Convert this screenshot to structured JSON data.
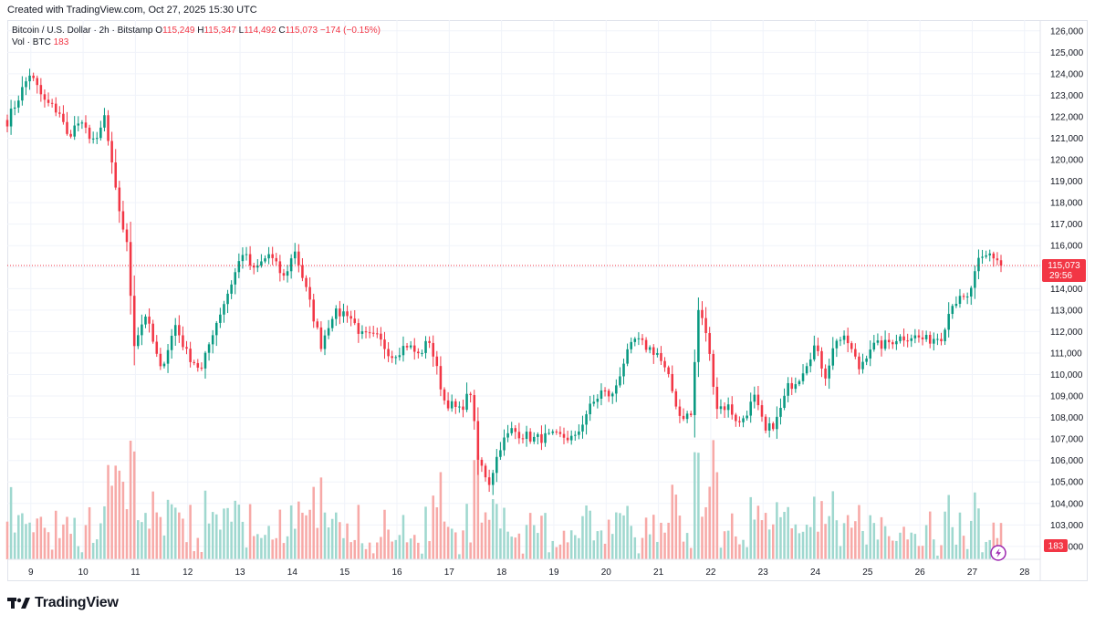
{
  "header": {
    "created_text": "Created with TradingView.com, Oct 27, 2025 15:30 UTC"
  },
  "legend": {
    "symbol": "Bitcoin / U.S. Dollar · 2h · Bitstamp",
    "open_label": "O",
    "open": "115,249",
    "high_label": "H",
    "high": "115,347",
    "low_label": "L",
    "low": "114,492",
    "close_label": "C",
    "close": "115,073",
    "change": "−174 (−0.15%)",
    "volume_label": "Vol · BTC",
    "volume": "183"
  },
  "price_badge": {
    "price": "115,073",
    "countdown": "29:56"
  },
  "volume_badge": "183",
  "footer": {
    "brand": "TradingView"
  },
  "colors": {
    "up": "#089981",
    "down": "#f23645",
    "up_vol": "#9fd8cf",
    "down_vol": "#f7a9a7",
    "grid": "#f0f3fa",
    "text": "#131722"
  },
  "chart_data": {
    "type": "candlestick",
    "symbol": "Bitcoin / U.S. Dollar",
    "interval": "2h",
    "exchange": "Bitstamp",
    "y_axis": {
      "min": 101400,
      "max": 126500,
      "ticks": [
        102000,
        103000,
        104000,
        105000,
        106000,
        107000,
        108000,
        109000,
        110000,
        111000,
        112000,
        113000,
        114000,
        115000,
        116000,
        117000,
        118000,
        119000,
        120000,
        121000,
        122000,
        123000,
        124000,
        125000,
        126000
      ]
    },
    "x_axis": {
      "start_day": 8.55,
      "end_day": 28.3,
      "ticks": [
        9,
        10,
        11,
        12,
        13,
        14,
        15,
        16,
        17,
        18,
        19,
        20,
        21,
        22,
        23,
        24,
        25,
        26,
        27,
        28
      ]
    },
    "last_price": 115073,
    "anchors": [
      [
        0,
        121800
      ],
      [
        6,
        124000
      ],
      [
        10,
        122700
      ],
      [
        14,
        122200
      ],
      [
        16,
        121100
      ],
      [
        19,
        121700
      ],
      [
        24,
        120800
      ],
      [
        26,
        122000
      ],
      [
        29,
        118500
      ],
      [
        32,
        116000
      ],
      [
        34,
        111500
      ],
      [
        37,
        112800
      ],
      [
        41,
        110200
      ],
      [
        45,
        112300
      ],
      [
        48,
        111000
      ],
      [
        52,
        110200
      ],
      [
        55,
        112000
      ],
      [
        59,
        113800
      ],
      [
        63,
        115700
      ],
      [
        66,
        114800
      ],
      [
        70,
        115600
      ],
      [
        74,
        114500
      ],
      [
        77,
        115800
      ],
      [
        81,
        113300
      ],
      [
        84,
        111400
      ],
      [
        87,
        112800
      ],
      [
        91,
        112900
      ],
      [
        95,
        111800
      ],
      [
        99,
        111700
      ],
      [
        103,
        110900
      ],
      [
        107,
        111400
      ],
      [
        110,
        110900
      ],
      [
        113,
        111600
      ],
      [
        117,
        108800
      ],
      [
        121,
        108300
      ],
      [
        124,
        109200
      ],
      [
        126,
        106000
      ],
      [
        129,
        105000
      ],
      [
        132,
        106700
      ],
      [
        135,
        107400
      ],
      [
        141,
        107000
      ],
      [
        145,
        107100
      ],
      [
        149,
        107100
      ],
      [
        152,
        107000
      ],
      [
        155,
        108200
      ],
      [
        159,
        109200
      ],
      [
        162,
        109000
      ],
      [
        165,
        110600
      ],
      [
        168,
        111600
      ],
      [
        171,
        111300
      ],
      [
        174,
        111000
      ],
      [
        177,
        109800
      ],
      [
        180,
        108100
      ],
      [
        183,
        108100
      ],
      [
        185,
        113000
      ],
      [
        187,
        112000
      ],
      [
        190,
        108500
      ],
      [
        193,
        108500
      ],
      [
        196,
        107700
      ],
      [
        200,
        108900
      ],
      [
        203,
        107300
      ],
      [
        206,
        107900
      ],
      [
        209,
        109400
      ],
      [
        212,
        109900
      ],
      [
        216,
        111300
      ],
      [
        219,
        110000
      ],
      [
        222,
        111700
      ],
      [
        225,
        111500
      ],
      [
        228,
        110300
      ],
      [
        231,
        111300
      ],
      [
        235,
        111400
      ],
      [
        238,
        111700
      ],
      [
        242,
        111800
      ],
      [
        246,
        111600
      ],
      [
        250,
        111800
      ],
      [
        253,
        113400
      ],
      [
        257,
        113500
      ],
      [
        260,
        115200
      ],
      [
        263,
        115600
      ],
      [
        266,
        115249
      ]
    ],
    "series": [
      {
        "name": "Bitcoin / U.S. Dollar",
        "kind": "candles",
        "count": 267,
        "first": {
          "day": 8.55
        }
      },
      {
        "name": "Vol · BTC",
        "kind": "volume"
      }
    ]
  }
}
